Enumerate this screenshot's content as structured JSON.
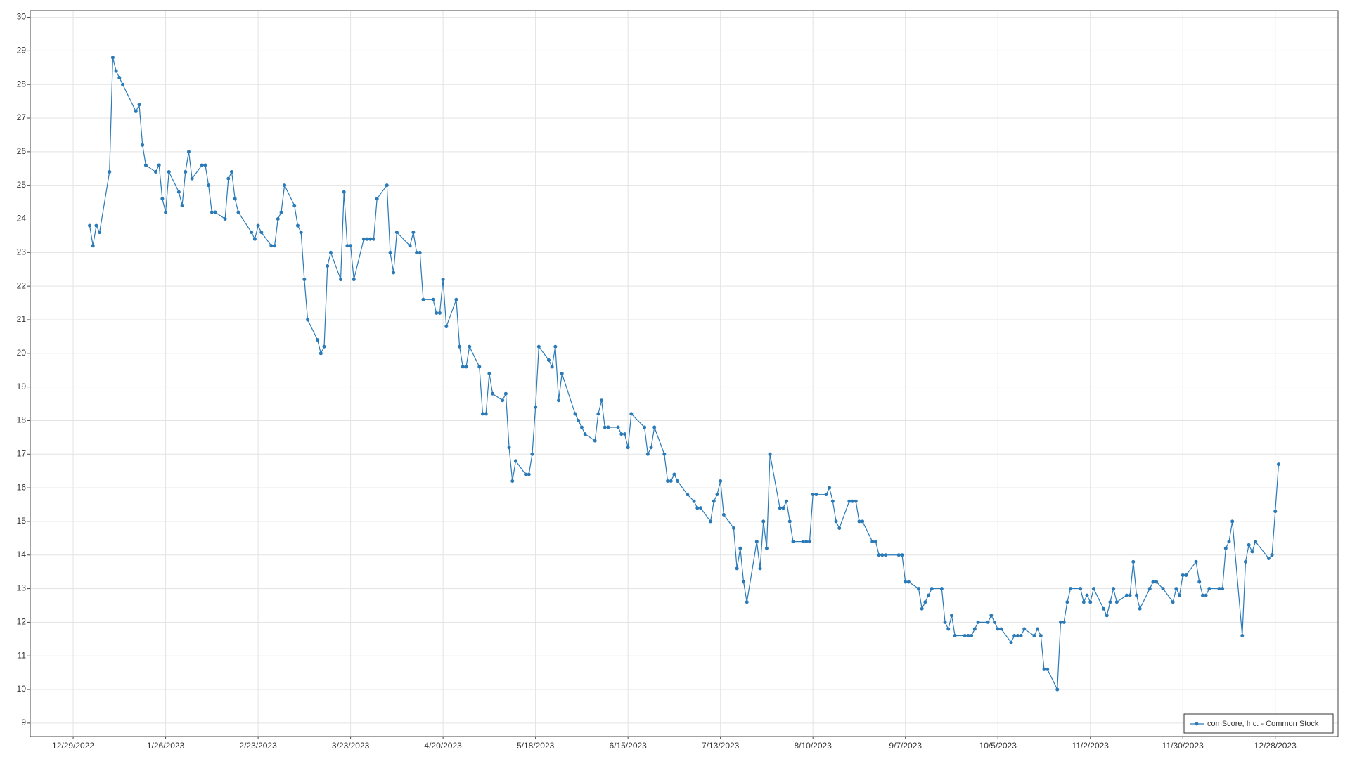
{
  "chart_data": {
    "type": "line",
    "x": [
      "1/3/2023",
      "1/4/2023",
      "1/5/2023",
      "1/6/2023",
      "1/9/2023",
      "1/10/2023",
      "1/11/2023",
      "1/12/2023",
      "1/13/2023",
      "1/17/2023",
      "1/18/2023",
      "1/19/2023",
      "1/20/2023",
      "1/23/2023",
      "1/24/2023",
      "1/25/2023",
      "1/26/2023",
      "1/27/2023",
      "1/30/2023",
      "1/31/2023",
      "2/1/2023",
      "2/2/2023",
      "2/3/2023",
      "2/6/2023",
      "2/7/2023",
      "2/8/2023",
      "2/9/2023",
      "2/10/2023",
      "2/13/2023",
      "2/14/2023",
      "2/15/2023",
      "2/16/2023",
      "2/17/2023",
      "2/21/2023",
      "2/22/2023",
      "2/23/2023",
      "2/24/2023",
      "2/27/2023",
      "2/28/2023",
      "3/1/2023",
      "3/2/2023",
      "3/3/2023",
      "3/6/2023",
      "3/7/2023",
      "3/8/2023",
      "3/9/2023",
      "3/10/2023",
      "3/13/2023",
      "3/14/2023",
      "3/15/2023",
      "3/16/2023",
      "3/17/2023",
      "3/20/2023",
      "3/21/2023",
      "3/22/2023",
      "3/23/2023",
      "3/24/2023",
      "3/27/2023",
      "3/28/2023",
      "3/29/2023",
      "3/30/2023",
      "3/31/2023",
      "4/3/2023",
      "4/4/2023",
      "4/5/2023",
      "4/6/2023",
      "4/10/2023",
      "4/11/2023",
      "4/12/2023",
      "4/13/2023",
      "4/14/2023",
      "4/17/2023",
      "4/18/2023",
      "4/19/2023",
      "4/20/2023",
      "4/21/2023",
      "4/24/2023",
      "4/25/2023",
      "4/26/2023",
      "4/27/2023",
      "4/28/2023",
      "5/1/2023",
      "5/2/2023",
      "5/3/2023",
      "5/4/2023",
      "5/5/2023",
      "5/8/2023",
      "5/9/2023",
      "5/10/2023",
      "5/11/2023",
      "5/12/2023",
      "5/15/2023",
      "5/16/2023",
      "5/17/2023",
      "5/18/2023",
      "5/19/2023",
      "5/22/2023",
      "5/23/2023",
      "5/24/2023",
      "5/25/2023",
      "5/26/2023",
      "5/30/2023",
      "5/31/2023",
      "6/1/2023",
      "6/2/2023",
      "6/5/2023",
      "6/6/2023",
      "6/7/2023",
      "6/8/2023",
      "6/9/2023",
      "6/12/2023",
      "6/13/2023",
      "6/14/2023",
      "6/15/2023",
      "6/16/2023",
      "6/20/2023",
      "6/21/2023",
      "6/22/2023",
      "6/23/2023",
      "6/26/2023",
      "6/27/2023",
      "6/28/2023",
      "6/29/2023",
      "6/30/2023",
      "7/3/2023",
      "7/5/2023",
      "7/6/2023",
      "7/7/2023",
      "7/10/2023",
      "7/11/2023",
      "7/12/2023",
      "7/13/2023",
      "7/14/2023",
      "7/17/2023",
      "7/18/2023",
      "7/19/2023",
      "7/20/2023",
      "7/21/2023",
      "7/24/2023",
      "7/25/2023",
      "7/26/2023",
      "7/27/2023",
      "7/28/2023",
      "7/31/2023",
      "8/1/2023",
      "8/2/2023",
      "8/3/2023",
      "8/4/2023",
      "8/7/2023",
      "8/8/2023",
      "8/9/2023",
      "8/10/2023",
      "8/11/2023",
      "8/14/2023",
      "8/15/2023",
      "8/16/2023",
      "8/17/2023",
      "8/18/2023",
      "8/21/2023",
      "8/22/2023",
      "8/23/2023",
      "8/24/2023",
      "8/25/2023",
      "8/28/2023",
      "8/29/2023",
      "8/30/2023",
      "8/31/2023",
      "9/1/2023",
      "9/5/2023",
      "9/6/2023",
      "9/7/2023",
      "9/8/2023",
      "9/11/2023",
      "9/12/2023",
      "9/13/2023",
      "9/14/2023",
      "9/15/2023",
      "9/18/2023",
      "9/19/2023",
      "9/20/2023",
      "9/21/2023",
      "9/22/2023",
      "9/25/2023",
      "9/26/2023",
      "9/27/2023",
      "9/28/2023",
      "9/29/2023",
      "10/2/2023",
      "10/3/2023",
      "10/4/2023",
      "10/5/2023",
      "10/6/2023",
      "10/9/2023",
      "10/10/2023",
      "10/11/2023",
      "10/12/2023",
      "10/13/2023",
      "10/16/2023",
      "10/17/2023",
      "10/18/2023",
      "10/19/2023",
      "10/20/2023",
      "10/23/2023",
      "10/24/2023",
      "10/25/2023",
      "10/26/2023",
      "10/27/2023",
      "10/30/2023",
      "10/31/2023",
      "11/1/2023",
      "11/2/2023",
      "11/3/2023",
      "11/6/2023",
      "11/7/2023",
      "11/8/2023",
      "11/9/2023",
      "11/10/2023",
      "11/13/2023",
      "11/14/2023",
      "11/15/2023",
      "11/16/2023",
      "11/17/2023",
      "11/20/2023",
      "11/21/2023",
      "11/22/2023",
      "11/24/2023",
      "11/27/2023",
      "11/28/2023",
      "11/29/2023",
      "11/30/2023",
      "12/1/2023",
      "12/4/2023",
      "12/5/2023",
      "12/6/2023",
      "12/7/2023",
      "12/8/2023",
      "12/11/2023",
      "12/12/2023",
      "12/13/2023",
      "12/14/2023",
      "12/15/2023",
      "12/18/2023",
      "12/19/2023",
      "12/20/2023",
      "12/21/2023",
      "12/22/2023",
      "12/26/2023",
      "12/27/2023",
      "12/28/2023",
      "12/29/2023"
    ],
    "series": [
      {
        "name": "comScore, Inc. - Common Stock",
        "color": "#2a7ab8",
        "values": [
          23.8,
          23.2,
          23.8,
          23.6,
          25.4,
          28.8,
          28.4,
          28.2,
          28.0,
          27.2,
          27.4,
          26.2,
          25.6,
          25.4,
          25.6,
          24.6,
          24.2,
          25.4,
          24.8,
          24.4,
          25.4,
          26.0,
          25.2,
          25.6,
          25.6,
          25.0,
          24.2,
          24.2,
          24.0,
          25.2,
          25.4,
          24.6,
          24.2,
          23.6,
          23.4,
          23.8,
          23.6,
          23.2,
          23.2,
          24.0,
          24.2,
          25.0,
          24.4,
          23.8,
          23.6,
          22.2,
          21.0,
          20.4,
          20.0,
          20.2,
          22.6,
          23.0,
          22.2,
          24.8,
          23.2,
          23.2,
          22.2,
          23.4,
          23.4,
          23.4,
          23.4,
          24.6,
          25.0,
          23.0,
          22.4,
          23.6,
          23.2,
          23.6,
          23.0,
          23.0,
          21.6,
          21.6,
          21.2,
          21.2,
          22.2,
          20.8,
          21.6,
          20.2,
          19.6,
          19.6,
          20.2,
          19.6,
          18.2,
          18.2,
          19.4,
          18.8,
          18.6,
          18.8,
          17.2,
          16.2,
          16.8,
          16.4,
          16.4,
          17.0,
          18.4,
          20.2,
          19.8,
          19.6,
          20.2,
          18.6,
          19.4,
          18.2,
          18.0,
          17.8,
          17.6,
          17.4,
          18.2,
          18.6,
          17.8,
          17.8,
          17.8,
          17.6,
          17.6,
          17.2,
          18.2,
          17.8,
          17.0,
          17.2,
          17.8,
          17.0,
          16.2,
          16.2,
          16.4,
          16.2,
          15.8,
          15.6,
          15.4,
          15.4,
          15.0,
          15.6,
          15.8,
          16.2,
          15.2,
          14.8,
          13.6,
          14.2,
          13.2,
          12.6,
          14.4,
          13.6,
          15.0,
          14.2,
          17.0,
          15.4,
          15.4,
          15.6,
          15.0,
          14.4,
          14.4,
          14.4,
          14.4,
          15.8,
          15.8,
          15.8,
          16.0,
          15.6,
          15.0,
          14.8,
          15.6,
          15.6,
          15.6,
          15.0,
          15.0,
          14.4,
          14.4,
          14.0,
          14.0,
          14.0,
          14.0,
          14.0,
          13.2,
          13.2,
          13.0,
          12.4,
          12.6,
          12.8,
          13.0,
          13.0,
          12.0,
          11.8,
          12.2,
          11.6,
          11.6,
          11.6,
          11.6,
          11.8,
          12.0,
          12.0,
          12.2,
          12.0,
          11.8,
          11.8,
          11.4,
          11.6,
          11.6,
          11.6,
          11.8,
          11.6,
          11.8,
          11.6,
          10.6,
          10.6,
          10.0,
          12.0,
          12.0,
          12.6,
          13.0,
          13.0,
          12.6,
          12.8,
          12.6,
          13.0,
          12.4,
          12.2,
          12.6,
          13.0,
          12.6,
          12.8,
          12.8,
          13.8,
          12.8,
          12.4,
          13.0,
          13.2,
          13.2,
          13.0,
          12.6,
          13.0,
          12.8,
          13.4,
          13.4,
          13.8,
          13.2,
          12.8,
          12.8,
          13.0,
          13.0,
          13.0,
          14.2,
          14.4,
          15.0,
          11.6,
          13.8,
          14.3,
          14.1,
          14.4,
          13.9,
          14.0,
          15.3,
          16.7
        ]
      }
    ],
    "xlim": [
      "12/16/2022",
      "1/16/2024"
    ],
    "xticks": [
      "12/29/2022",
      "1/26/2023",
      "2/23/2023",
      "3/23/2023",
      "4/20/2023",
      "5/18/2023",
      "6/15/2023",
      "7/13/2023",
      "8/10/2023",
      "9/7/2023",
      "10/5/2023",
      "11/2/2023",
      "11/30/2023",
      "12/28/2023"
    ],
    "ylim": [
      8.6,
      30.2
    ],
    "yticks": [
      9,
      10,
      11,
      12,
      13,
      14,
      15,
      16,
      17,
      18,
      19,
      20,
      21,
      22,
      23,
      24,
      25,
      26,
      27,
      28,
      29,
      30
    ],
    "grid": true,
    "markers": true,
    "legend": "bottom-right"
  }
}
